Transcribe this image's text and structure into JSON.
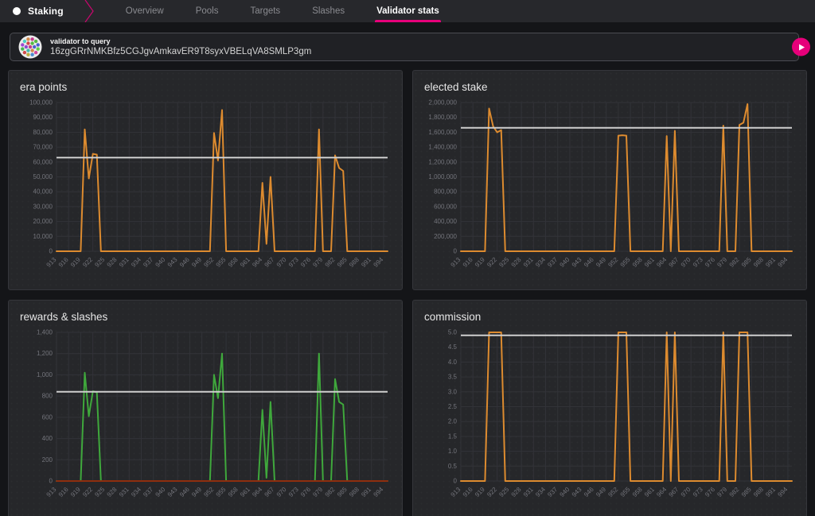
{
  "nav": {
    "app_label": "Staking",
    "tabs": [
      {
        "label": "Overview",
        "active": false
      },
      {
        "label": "Pools",
        "active": false
      },
      {
        "label": "Targets",
        "active": false
      },
      {
        "label": "Slashes",
        "active": false
      },
      {
        "label": "Validator stats",
        "active": true
      }
    ]
  },
  "query": {
    "label": "validator to query",
    "value": "16zgGRrNMKBfz5CGJgvAmkavER9T8syxVBELqVA8SMLP3gm"
  },
  "colors": {
    "accent": "#e6007a",
    "orange": "#dd8b2f",
    "green": "#3fa83c",
    "red": "#8f2e0e",
    "average": "#cfcfcf"
  },
  "chart_data": [
    {
      "type": "line",
      "title": "era points",
      "x_range": [
        913,
        995
      ],
      "x_tick_labels": [
        "913",
        "916",
        "919",
        "922",
        "925",
        "928",
        "931",
        "934",
        "937",
        "940",
        "943",
        "946",
        "949",
        "952",
        "955",
        "958",
        "961",
        "964",
        "967",
        "970",
        "973",
        "976",
        "979",
        "982",
        "985",
        "988",
        "991",
        "994"
      ],
      "ymax": 100000,
      "y_tick_values": [
        0,
        10000,
        20000,
        30000,
        40000,
        50000,
        60000,
        70000,
        80000,
        90000,
        100000
      ],
      "y_tick_labels": [
        "0",
        "10,000",
        "20,000",
        "30,000",
        "40,000",
        "50,000",
        "60,000",
        "70,000",
        "80,000",
        "90,000",
        "100,000"
      ],
      "baseline_value": 0,
      "series": [
        {
          "name": "era points",
          "color": "#dd8b2f",
          "points": {
            "920": 82000,
            "921": 49000,
            "922": 65500,
            "923": 65000,
            "952": 79500,
            "953": 61000,
            "954": 95000,
            "964": 46000,
            "965": 5000,
            "966": 50000,
            "978": 82000,
            "982": 64500,
            "983": 56000,
            "984": 54000
          }
        }
      ],
      "average_line": {
        "value": 63000,
        "color": "#cfcfcf"
      }
    },
    {
      "type": "line",
      "title": "elected stake",
      "x_range": [
        913,
        995
      ],
      "x_tick_labels": [
        "913",
        "916",
        "919",
        "922",
        "925",
        "928",
        "931",
        "934",
        "937",
        "940",
        "943",
        "946",
        "949",
        "952",
        "955",
        "958",
        "961",
        "964",
        "967",
        "970",
        "973",
        "976",
        "979",
        "982",
        "985",
        "988",
        "991",
        "994"
      ],
      "ymax": 2000000,
      "y_tick_values": [
        0,
        200000,
        400000,
        600000,
        800000,
        1000000,
        1200000,
        1400000,
        1600000,
        1800000,
        2000000
      ],
      "y_tick_labels": [
        "0",
        "200,000",
        "400,000",
        "600,000",
        "800,000",
        "1,000,000",
        "1,200,000",
        "1,400,000",
        "1,600,000",
        "1,800,000",
        "2,000,000"
      ],
      "baseline_value": 0,
      "series": [
        {
          "name": "elected stake",
          "color": "#dd8b2f",
          "points": {
            "920": 1920000,
            "921": 1680000,
            "922": 1600000,
            "923": 1630000,
            "952": 1555000,
            "953": 1560000,
            "954": 1555000,
            "964": 1550000,
            "966": 1620000,
            "978": 1690000,
            "982": 1700000,
            "983": 1730000,
            "984": 1980000
          }
        }
      ],
      "average_line": {
        "value": 1660000,
        "color": "#cfcfcf"
      }
    },
    {
      "type": "line",
      "title": "rewards & slashes",
      "x_range": [
        913,
        995
      ],
      "x_tick_labels": [
        "913",
        "916",
        "919",
        "922",
        "925",
        "928",
        "931",
        "934",
        "937",
        "940",
        "943",
        "946",
        "949",
        "952",
        "955",
        "958",
        "961",
        "964",
        "967",
        "970",
        "973",
        "976",
        "979",
        "982",
        "985",
        "988",
        "991",
        "994"
      ],
      "ymax": 1400,
      "y_tick_values": [
        0,
        200,
        400,
        600,
        800,
        1000,
        1200,
        1400
      ],
      "y_tick_labels": [
        "0",
        "200",
        "400",
        "600",
        "800",
        "1,000",
        "1,200",
        "1,400"
      ],
      "baseline_value": 0,
      "series": [
        {
          "name": "rewards",
          "color": "#3fa83c",
          "points": {
            "920": 1020,
            "921": 610,
            "922": 845,
            "923": 835,
            "952": 1000,
            "953": 780,
            "954": 1200,
            "964": 670,
            "965": 30,
            "966": 745,
            "978": 1200,
            "982": 960,
            "983": 745,
            "984": 720
          }
        },
        {
          "name": "slashes",
          "color": "#8f2e0e",
          "points": {}
        }
      ],
      "average_line": {
        "value": 840,
        "color": "#cfcfcf"
      }
    },
    {
      "type": "line",
      "title": "commission",
      "x_range": [
        913,
        995
      ],
      "x_tick_labels": [
        "913",
        "916",
        "919",
        "922",
        "925",
        "928",
        "931",
        "934",
        "937",
        "940",
        "943",
        "946",
        "949",
        "952",
        "955",
        "958",
        "961",
        "964",
        "967",
        "970",
        "973",
        "976",
        "979",
        "982",
        "985",
        "988",
        "991",
        "994"
      ],
      "ymax": 5,
      "y_tick_values": [
        0,
        0.5,
        1.0,
        1.5,
        2.0,
        2.5,
        3.0,
        3.5,
        4.0,
        4.5,
        5.0
      ],
      "y_tick_labels": [
        "0",
        "0.5",
        "1.0",
        "1.5",
        "2.0",
        "2.5",
        "3.0",
        "3.5",
        "4.0",
        "4.5",
        "5.0"
      ],
      "baseline_value": 0,
      "series": [
        {
          "name": "commission",
          "color": "#dd8b2f",
          "points": {
            "920": 5,
            "921": 5,
            "922": 5,
            "923": 5,
            "952": 5,
            "953": 5,
            "954": 5,
            "964": 5,
            "966": 5,
            "978": 5,
            "982": 5,
            "983": 5,
            "984": 5
          }
        }
      ],
      "average_line": {
        "value": 4.9,
        "color": "#cfcfcf"
      }
    }
  ]
}
